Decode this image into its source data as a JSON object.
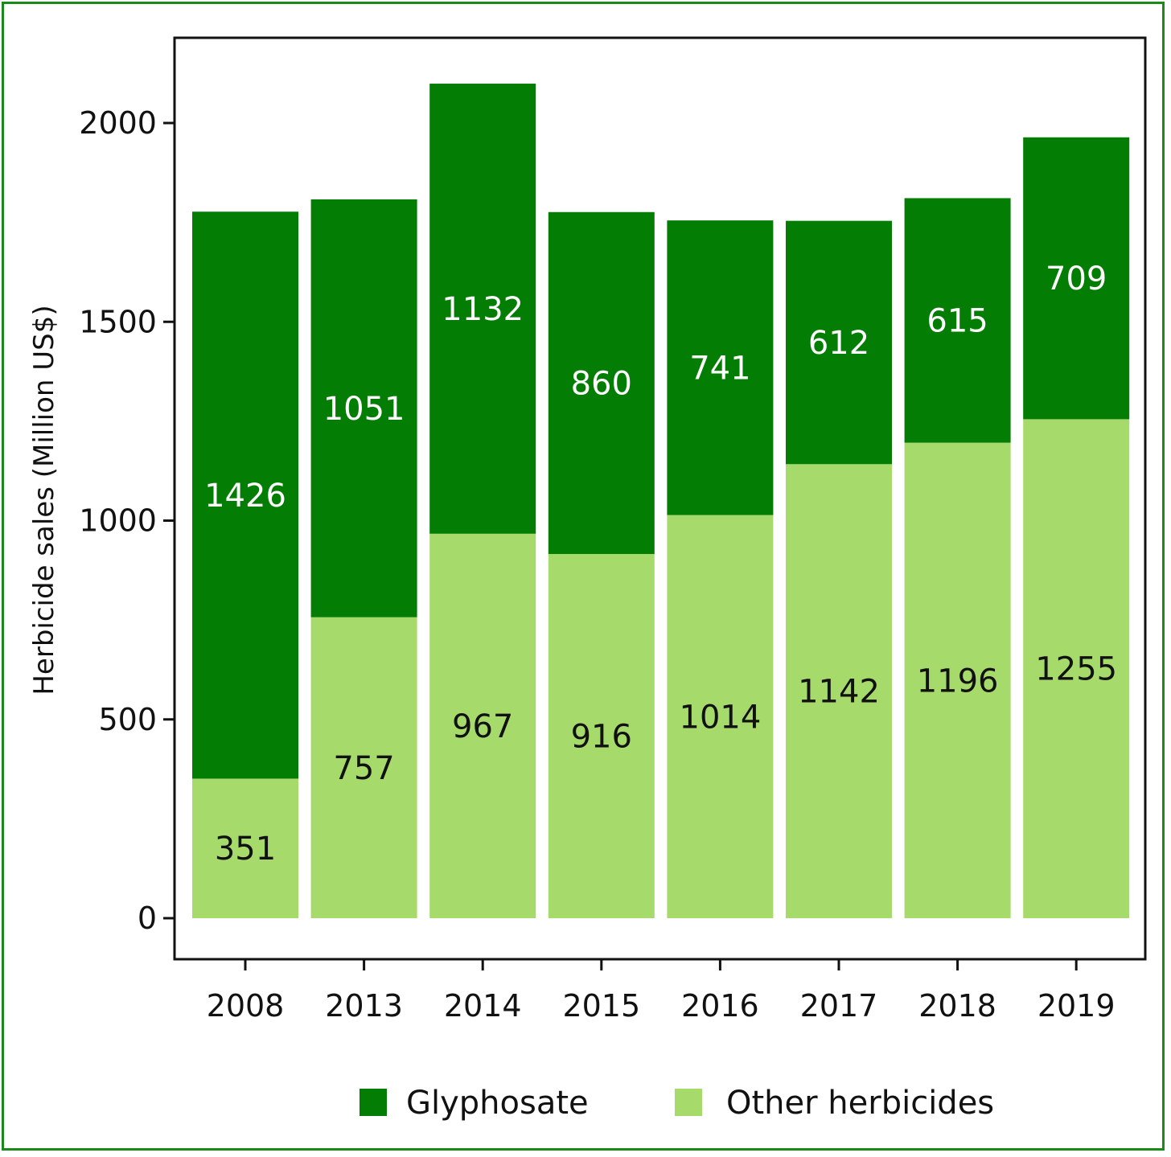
{
  "chart_data": {
    "type": "bar",
    "stacked": true,
    "title": "",
    "xlabel": "",
    "ylabel": "Herbicide sales (Million US$)",
    "categories": [
      "2008",
      "2013",
      "2014",
      "2015",
      "2016",
      "2017",
      "2018",
      "2019"
    ],
    "series": [
      {
        "name": "Other herbicides",
        "values": [
          351,
          757,
          967,
          916,
          1014,
          1142,
          1196,
          1255
        ],
        "color": "#a6da6a",
        "label_color": "#111111"
      },
      {
        "name": "Glyphosate",
        "values": [
          1426,
          1051,
          1132,
          860,
          741,
          612,
          615,
          709
        ],
        "color": "#047d04",
        "label_color": "#ffffff"
      }
    ],
    "ylim": [
      -100,
      2200
    ],
    "yticks": [
      0,
      500,
      1000,
      1500,
      2000
    ],
    "legend": {
      "position": "bottom",
      "order": [
        "Glyphosate",
        "Other herbicides"
      ]
    },
    "grid": false
  }
}
